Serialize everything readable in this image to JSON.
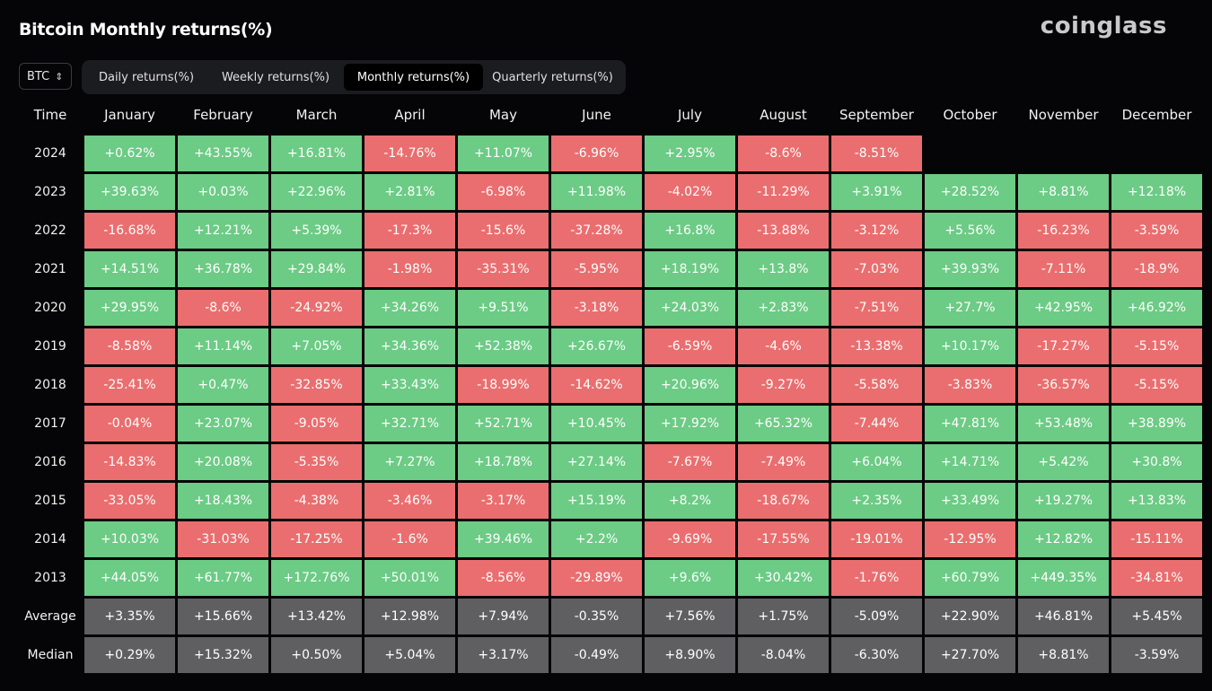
{
  "header": {
    "title": "Bitcoin Monthly returns(%)",
    "brand": "coinglass"
  },
  "asset_selector": {
    "value": "BTC",
    "icon": "chevron-updown-icon"
  },
  "tabs": [
    {
      "label": "Daily returns(%)",
      "active": false
    },
    {
      "label": "Weekly returns(%)",
      "active": false
    },
    {
      "label": "Monthly returns(%)",
      "active": true
    },
    {
      "label": "Quarterly returns(%)",
      "active": false
    }
  ],
  "colors": {
    "positive": "#6ccb85",
    "negative": "#ea6e6f",
    "summary": "#5f5f62",
    "background": "#050507"
  },
  "table": {
    "columns": [
      "Time",
      "January",
      "February",
      "March",
      "April",
      "May",
      "June",
      "July",
      "August",
      "September",
      "October",
      "November",
      "December"
    ],
    "rows": [
      {
        "label": "2024",
        "type": "year",
        "values": [
          "+0.62%",
          "+43.55%",
          "+16.81%",
          "-14.76%",
          "+11.07%",
          "-6.96%",
          "+2.95%",
          "-8.6%",
          "-8.51%",
          "",
          "",
          ""
        ]
      },
      {
        "label": "2023",
        "type": "year",
        "values": [
          "+39.63%",
          "+0.03%",
          "+22.96%",
          "+2.81%",
          "-6.98%",
          "+11.98%",
          "-4.02%",
          "-11.29%",
          "+3.91%",
          "+28.52%",
          "+8.81%",
          "+12.18%"
        ]
      },
      {
        "label": "2022",
        "type": "year",
        "values": [
          "-16.68%",
          "+12.21%",
          "+5.39%",
          "-17.3%",
          "-15.6%",
          "-37.28%",
          "+16.8%",
          "-13.88%",
          "-3.12%",
          "+5.56%",
          "-16.23%",
          "-3.59%"
        ]
      },
      {
        "label": "2021",
        "type": "year",
        "values": [
          "+14.51%",
          "+36.78%",
          "+29.84%",
          "-1.98%",
          "-35.31%",
          "-5.95%",
          "+18.19%",
          "+13.8%",
          "-7.03%",
          "+39.93%",
          "-7.11%",
          "-18.9%"
        ]
      },
      {
        "label": "2020",
        "type": "year",
        "values": [
          "+29.95%",
          "-8.6%",
          "-24.92%",
          "+34.26%",
          "+9.51%",
          "-3.18%",
          "+24.03%",
          "+2.83%",
          "-7.51%",
          "+27.7%",
          "+42.95%",
          "+46.92%"
        ]
      },
      {
        "label": "2019",
        "type": "year",
        "values": [
          "-8.58%",
          "+11.14%",
          "+7.05%",
          "+34.36%",
          "+52.38%",
          "+26.67%",
          "-6.59%",
          "-4.6%",
          "-13.38%",
          "+10.17%",
          "-17.27%",
          "-5.15%"
        ]
      },
      {
        "label": "2018",
        "type": "year",
        "values": [
          "-25.41%",
          "+0.47%",
          "-32.85%",
          "+33.43%",
          "-18.99%",
          "-14.62%",
          "+20.96%",
          "-9.27%",
          "-5.58%",
          "-3.83%",
          "-36.57%",
          "-5.15%"
        ]
      },
      {
        "label": "2017",
        "type": "year",
        "values": [
          "-0.04%",
          "+23.07%",
          "-9.05%",
          "+32.71%",
          "+52.71%",
          "+10.45%",
          "+17.92%",
          "+65.32%",
          "-7.44%",
          "+47.81%",
          "+53.48%",
          "+38.89%"
        ]
      },
      {
        "label": "2016",
        "type": "year",
        "values": [
          "-14.83%",
          "+20.08%",
          "-5.35%",
          "+7.27%",
          "+18.78%",
          "+27.14%",
          "-7.67%",
          "-7.49%",
          "+6.04%",
          "+14.71%",
          "+5.42%",
          "+30.8%"
        ]
      },
      {
        "label": "2015",
        "type": "year",
        "values": [
          "-33.05%",
          "+18.43%",
          "-4.38%",
          "-3.46%",
          "-3.17%",
          "+15.19%",
          "+8.2%",
          "-18.67%",
          "+2.35%",
          "+33.49%",
          "+19.27%",
          "+13.83%"
        ]
      },
      {
        "label": "2014",
        "type": "year",
        "values": [
          "+10.03%",
          "-31.03%",
          "-17.25%",
          "-1.6%",
          "+39.46%",
          "+2.2%",
          "-9.69%",
          "-17.55%",
          "-19.01%",
          "-12.95%",
          "+12.82%",
          "-15.11%"
        ]
      },
      {
        "label": "2013",
        "type": "year",
        "values": [
          "+44.05%",
          "+61.77%",
          "+172.76%",
          "+50.01%",
          "-8.56%",
          "-29.89%",
          "+9.6%",
          "+30.42%",
          "-1.76%",
          "+60.79%",
          "+449.35%",
          "-34.81%"
        ]
      },
      {
        "label": "Average",
        "type": "summary",
        "values": [
          "+3.35%",
          "+15.66%",
          "+13.42%",
          "+12.98%",
          "+7.94%",
          "-0.35%",
          "+7.56%",
          "+1.75%",
          "-5.09%",
          "+22.90%",
          "+46.81%",
          "+5.45%"
        ]
      },
      {
        "label": "Median",
        "type": "summary",
        "values": [
          "+0.29%",
          "+15.32%",
          "+0.50%",
          "+5.04%",
          "+3.17%",
          "-0.49%",
          "+8.90%",
          "-8.04%",
          "-6.30%",
          "+27.70%",
          "+8.81%",
          "-3.59%"
        ]
      }
    ]
  }
}
